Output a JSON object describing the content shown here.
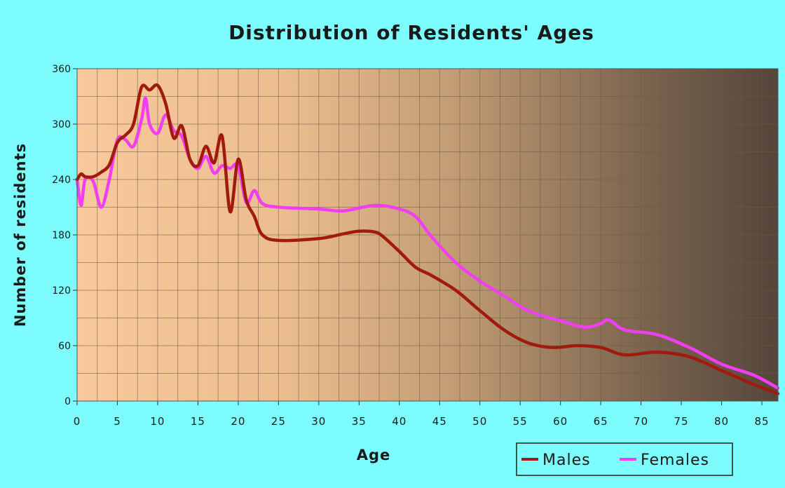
{
  "chart_data": {
    "type": "line",
    "title": "Distribution of Residents' Ages",
    "xlabel": "Age",
    "ylabel": "Number of residents",
    "xlim": [
      0,
      87
    ],
    "ylim": [
      0,
      360
    ],
    "x_ticks": [
      0,
      5,
      10,
      15,
      20,
      25,
      30,
      35,
      40,
      45,
      50,
      55,
      60,
      65,
      70,
      75,
      80,
      85
    ],
    "y_ticks": [
      0,
      60,
      120,
      180,
      240,
      300,
      360
    ],
    "grid": true,
    "legend": "bottom-right",
    "series": [
      {
        "name": "Males",
        "color": "#a01a0e",
        "x": [
          0,
          0.5,
          1,
          2,
          3,
          4,
          5,
          6,
          7,
          8,
          9,
          10,
          11,
          12,
          13,
          14,
          15,
          16,
          17,
          18,
          19,
          20,
          21,
          22,
          23,
          25,
          30,
          33,
          35,
          37,
          38,
          40,
          42,
          44,
          47,
          50,
          53,
          56,
          59,
          62,
          65,
          68,
          72,
          76,
          80,
          84,
          87
        ],
        "values": [
          240,
          246,
          243,
          243,
          248,
          256,
          280,
          288,
          300,
          340,
          337,
          342,
          322,
          285,
          298,
          262,
          255,
          276,
          258,
          287,
          205,
          262,
          218,
          200,
          180,
          174,
          176,
          181,
          184,
          183,
          178,
          162,
          145,
          136,
          120,
          98,
          77,
          63,
          58,
          60,
          58,
          50,
          53,
          48,
          33,
          18,
          8
        ]
      },
      {
        "name": "Females",
        "color": "#f23ef2",
        "x": [
          0,
          0.5,
          1,
          2,
          3,
          4,
          5,
          6,
          7,
          8,
          8.5,
          9,
          10,
          11,
          12,
          13,
          14,
          15,
          16,
          17,
          18,
          19,
          20,
          21,
          22,
          23,
          25,
          30,
          33,
          37,
          40,
          42,
          44,
          47,
          50,
          53,
          56,
          60,
          63,
          65,
          66,
          68,
          72,
          76,
          80,
          84,
          87
        ],
        "values": [
          240,
          212,
          240,
          238,
          210,
          240,
          283,
          283,
          276,
          305,
          328,
          300,
          290,
          310,
          293,
          287,
          262,
          252,
          265,
          247,
          255,
          252,
          255,
          215,
          228,
          214,
          210,
          208,
          206,
          212,
          208,
          200,
          178,
          150,
          130,
          114,
          98,
          87,
          80,
          84,
          88,
          77,
          72,
          58,
          40,
          28,
          14
        ]
      }
    ]
  }
}
